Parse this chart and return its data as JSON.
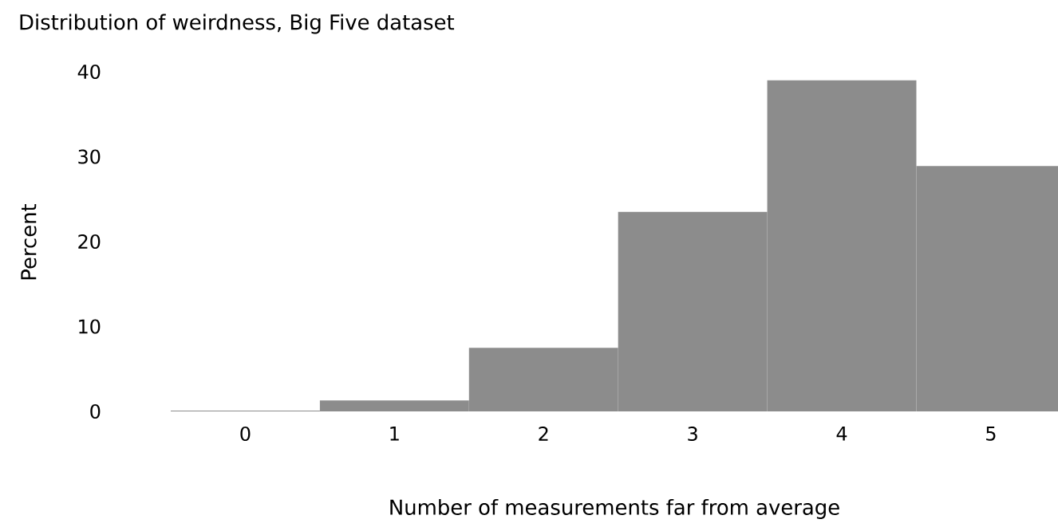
{
  "chart_data": {
    "type": "bar",
    "title": "Distribution of weirdness, Big Five dataset",
    "xlabel": "Number of measurements far from average",
    "ylabel": "Percent",
    "categories": [
      "0",
      "1",
      "2",
      "3",
      "4",
      "5"
    ],
    "values": [
      0.1,
      1.3,
      7.5,
      23.5,
      39.0,
      28.9
    ],
    "color": "#8c8c8c",
    "ylim": [
      0,
      40
    ],
    "yticks": [
      0,
      10,
      20,
      30,
      40
    ]
  }
}
